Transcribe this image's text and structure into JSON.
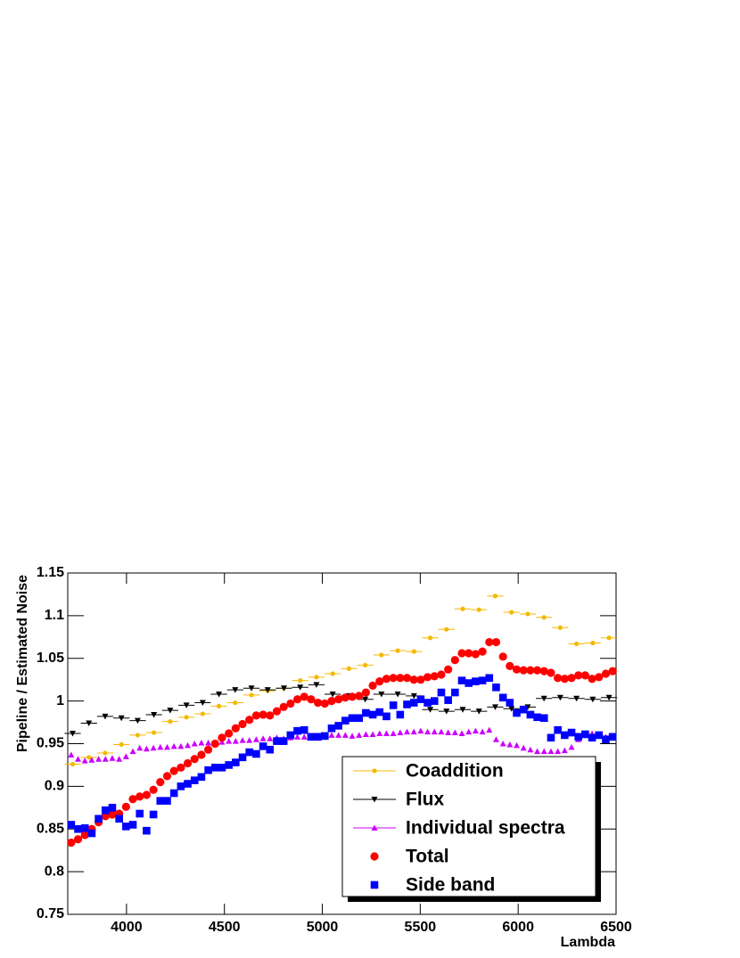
{
  "chart_data": {
    "type": "scatter",
    "xlabel": "Lambda",
    "ylabel": "Pipeline / Estimated Noise",
    "xlim": [
      3700,
      6500
    ],
    "xticks": [
      4000,
      4500,
      5000,
      5500,
      6000,
      6500
    ],
    "ylim": [
      0.75,
      1.15
    ],
    "yticks": [
      0.75,
      0.8,
      0.85,
      0.9,
      0.95,
      1,
      1.05,
      1.1,
      1.15
    ],
    "legend": "lower right",
    "series": [
      {
        "name": "Coaddition",
        "color": "#f5b800",
        "marker": "small-circle",
        "xerr": 41.5,
        "x": [
          3725,
          3808,
          3891,
          3974,
          4057,
          4140,
          4223,
          4306,
          4389,
          4472,
          4555,
          4638,
          4721,
          4804,
          4887,
          4970,
          5053,
          5136,
          5219,
          5302,
          5385,
          5468,
          5551,
          5634,
          5717,
          5800,
          5883,
          5966,
          6049,
          6132,
          6215,
          6298,
          6381,
          6464
        ],
        "values": [
          0.926,
          0.934,
          0.939,
          0.949,
          0.96,
          0.963,
          0.976,
          0.981,
          0.985,
          0.994,
          0.998,
          1.007,
          1.012,
          1.015,
          1.024,
          1.028,
          1.032,
          1.038,
          1.042,
          1.054,
          1.059,
          1.058,
          1.074,
          1.084,
          1.108,
          1.107,
          1.123,
          1.104,
          1.102,
          1.098,
          1.086,
          1.067,
          1.068,
          1.074
        ]
      },
      {
        "name": "Flux",
        "color": "#000000",
        "marker": "triangle-down",
        "xerr": 41.5,
        "x": [
          3725,
          3808,
          3891,
          3974,
          4057,
          4140,
          4223,
          4306,
          4389,
          4472,
          4555,
          4638,
          4721,
          4804,
          4887,
          4970,
          5053,
          5136,
          5219,
          5302,
          5385,
          5468,
          5551,
          5634,
          5717,
          5800,
          5883,
          5966,
          6049,
          6132,
          6215,
          6298,
          6381,
          6464
        ],
        "values": [
          0.962,
          0.974,
          0.982,
          0.98,
          0.977,
          0.984,
          0.989,
          0.995,
          0.998,
          1.008,
          1.013,
          1.015,
          1.013,
          1.015,
          1.016,
          1.019,
          1.008,
          1.006,
          1.002,
          1.008,
          1.008,
          1.006,
          0.99,
          0.988,
          0.99,
          0.988,
          0.993,
          0.991,
          0.993,
          1.003,
          1.004,
          1.003,
          1.002,
          1.004
        ]
      },
      {
        "name": "Individual spectra",
        "color": "#cc00ff",
        "marker": "triangle-up",
        "x": [
          3717.5,
          3752.5,
          3787.5,
          3822.5,
          3857.5,
          3892.5,
          3927.5,
          3962.5,
          3997.5,
          4032.5,
          4067.5,
          4102.5,
          4137.5,
          4172.5,
          4207.5,
          4242.5,
          4277.5,
          4312.5,
          4347.5,
          4382.5,
          4417.5,
          4452.5,
          4487.5,
          4522.5,
          4557.5,
          4592.5,
          4627.5,
          4662.5,
          4697.5,
          4732.5,
          4767.5,
          4802.5,
          4837.5,
          4872.5,
          4907.5,
          4942.5,
          4977.5,
          5012.5,
          5047.5,
          5082.5,
          5117.5,
          5152.5,
          5187.5,
          5222.5,
          5257.5,
          5292.5,
          5327.5,
          5362.5,
          5397.5,
          5432.5,
          5467.5,
          5502.5,
          5537.5,
          5572.5,
          5607.5,
          5642.5,
          5677.5,
          5712.5,
          5747.5,
          5782.5,
          5817.5,
          5852.5,
          5887.5,
          5922.5,
          5957.5,
          5992.5,
          6027.5,
          6062.5,
          6097.5,
          6132.5,
          6167.5,
          6202.5,
          6237.5,
          6272.5,
          6307.5,
          6342.5,
          6377.5,
          6412.5,
          6447.5,
          6482.5
        ],
        "values": [
          0.937,
          0.932,
          0.93,
          0.931,
          0.932,
          0.932,
          0.933,
          0.932,
          0.935,
          0.941,
          0.945,
          0.944,
          0.945,
          0.946,
          0.946,
          0.947,
          0.947,
          0.948,
          0.95,
          0.951,
          0.951,
          0.951,
          0.952,
          0.953,
          0.953,
          0.954,
          0.954,
          0.955,
          0.956,
          0.956,
          0.957,
          0.956,
          0.957,
          0.958,
          0.958,
          0.958,
          0.959,
          0.959,
          0.96,
          0.96,
          0.96,
          0.959,
          0.96,
          0.961,
          0.961,
          0.962,
          0.962,
          0.962,
          0.963,
          0.964,
          0.964,
          0.965,
          0.964,
          0.964,
          0.964,
          0.963,
          0.963,
          0.962,
          0.964,
          0.965,
          0.964,
          0.966,
          0.955,
          0.95,
          0.949,
          0.948,
          0.945,
          0.943,
          0.941,
          0.941,
          0.941,
          0.941,
          0.942,
          0.946,
          0.955,
          0.962,
          0.962,
          0.96,
          0.958,
          0.958
        ]
      },
      {
        "name": "Total",
        "color": "#ff0000",
        "marker": "circle",
        "x": [
          3717.5,
          3752.5,
          3787.5,
          3822.5,
          3857.5,
          3892.5,
          3927.5,
          3962.5,
          3997.5,
          4032.5,
          4067.5,
          4102.5,
          4137.5,
          4172.5,
          4207.5,
          4242.5,
          4277.5,
          4312.5,
          4347.5,
          4382.5,
          4417.5,
          4452.5,
          4487.5,
          4522.5,
          4557.5,
          4592.5,
          4627.5,
          4662.5,
          4697.5,
          4732.5,
          4767.5,
          4802.5,
          4837.5,
          4872.5,
          4907.5,
          4942.5,
          4977.5,
          5012.5,
          5047.5,
          5082.5,
          5117.5,
          5152.5,
          5187.5,
          5222.5,
          5257.5,
          5292.5,
          5327.5,
          5362.5,
          5397.5,
          5432.5,
          5467.5,
          5502.5,
          5537.5,
          5572.5,
          5607.5,
          5642.5,
          5677.5,
          5712.5,
          5747.5,
          5782.5,
          5817.5,
          5852.5,
          5887.5,
          5922.5,
          5957.5,
          5992.5,
          6027.5,
          6062.5,
          6097.5,
          6132.5,
          6167.5,
          6202.5,
          6237.5,
          6272.5,
          6307.5,
          6342.5,
          6377.5,
          6412.5,
          6447.5,
          6482.5
        ],
        "values": [
          0.834,
          0.838,
          0.843,
          0.85,
          0.858,
          0.865,
          0.867,
          0.868,
          0.876,
          0.885,
          0.888,
          0.89,
          0.896,
          0.905,
          0.912,
          0.918,
          0.922,
          0.927,
          0.932,
          0.937,
          0.943,
          0.95,
          0.957,
          0.962,
          0.968,
          0.973,
          0.978,
          0.983,
          0.984,
          0.983,
          0.988,
          0.993,
          0.997,
          1.002,
          1.005,
          1.002,
          0.998,
          0.997,
          1.0,
          1.002,
          1.004,
          1.005,
          1.006,
          1.01,
          1.018,
          1.023,
          1.026,
          1.027,
          1.027,
          1.027,
          1.025,
          1.025,
          1.028,
          1.029,
          1.031,
          1.037,
          1.048,
          1.056,
          1.056,
          1.055,
          1.058,
          1.069,
          1.069,
          1.052,
          1.041,
          1.037,
          1.036,
          1.036,
          1.036,
          1.035,
          1.033,
          1.027,
          1.026,
          1.027,
          1.03,
          1.03,
          1.026,
          1.028,
          1.032,
          1.035
        ]
      },
      {
        "name": "Side band",
        "color": "#0000ff",
        "marker": "square",
        "x": [
          3717.5,
          3752.5,
          3787.5,
          3822.5,
          3857.5,
          3892.5,
          3927.5,
          3962.5,
          3997.5,
          4032.5,
          4067.5,
          4102.5,
          4137.5,
          4172.5,
          4207.5,
          4242.5,
          4277.5,
          4312.5,
          4347.5,
          4382.5,
          4417.5,
          4452.5,
          4487.5,
          4522.5,
          4557.5,
          4592.5,
          4627.5,
          4662.5,
          4697.5,
          4732.5,
          4767.5,
          4802.5,
          4837.5,
          4872.5,
          4907.5,
          4942.5,
          4977.5,
          5012.5,
          5047.5,
          5082.5,
          5117.5,
          5152.5,
          5187.5,
          5222.5,
          5257.5,
          5292.5,
          5327.5,
          5362.5,
          5397.5,
          5432.5,
          5467.5,
          5502.5,
          5537.5,
          5572.5,
          5607.5,
          5642.5,
          5677.5,
          5712.5,
          5747.5,
          5782.5,
          5817.5,
          5852.5,
          5887.5,
          5922.5,
          5957.5,
          5992.5,
          6027.5,
          6062.5,
          6097.5,
          6132.5,
          6167.5,
          6202.5,
          6237.5,
          6272.5,
          6307.5,
          6342.5,
          6377.5,
          6412.5,
          6447.5,
          6482.5
        ],
        "values": [
          0.855,
          0.85,
          0.851,
          0.845,
          0.862,
          0.872,
          0.875,
          0.862,
          0.853,
          0.855,
          0.868,
          0.848,
          0.867,
          0.883,
          0.883,
          0.892,
          0.9,
          0.903,
          0.907,
          0.911,
          0.919,
          0.922,
          0.922,
          0.925,
          0.928,
          0.934,
          0.94,
          0.938,
          0.947,
          0.943,
          0.953,
          0.953,
          0.96,
          0.965,
          0.966,
          0.958,
          0.958,
          0.959,
          0.968,
          0.971,
          0.977,
          0.98,
          0.98,
          0.986,
          0.984,
          0.987,
          0.982,
          0.995,
          0.984,
          0.996,
          0.998,
          1.002,
          0.998,
          1.0,
          1.01,
          1.001,
          1.01,
          1.024,
          1.021,
          1.023,
          1.024,
          1.027,
          1.016,
          1.004,
          0.998,
          0.986,
          0.99,
          0.984,
          0.981,
          0.98,
          0.957,
          0.966,
          0.96,
          0.963,
          0.958,
          0.961,
          0.957,
          0.96,
          0.955,
          0.958
        ]
      }
    ]
  }
}
